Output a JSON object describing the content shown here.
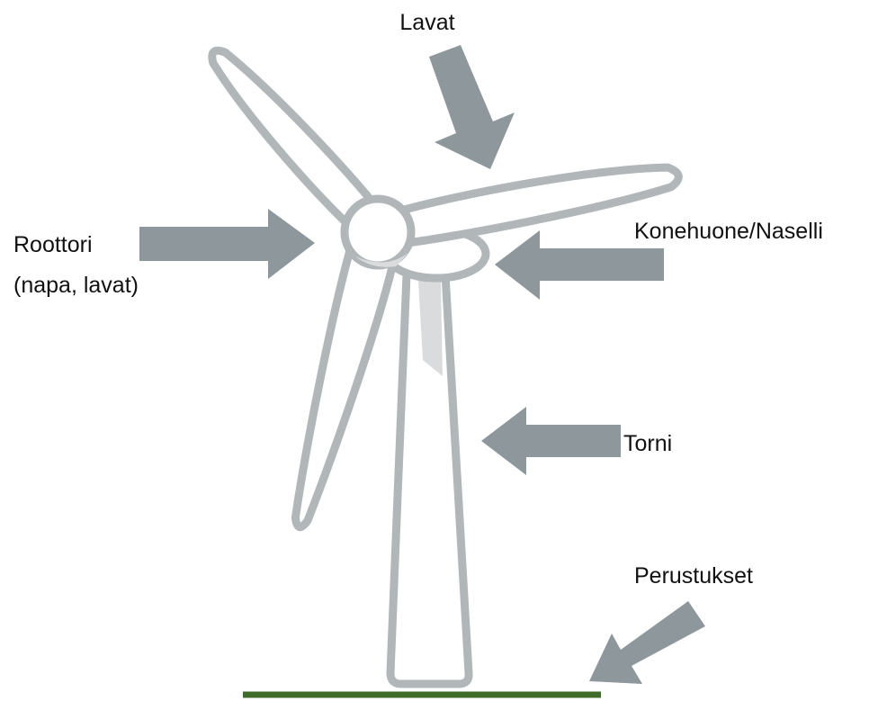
{
  "labels": {
    "blades": "Lavat",
    "rotor": [
      "Roottori",
      "(napa, lavat)"
    ],
    "nacelle": "Konehuone/Naselli",
    "tower": "Torni",
    "foundation": "Perustukset"
  }
}
